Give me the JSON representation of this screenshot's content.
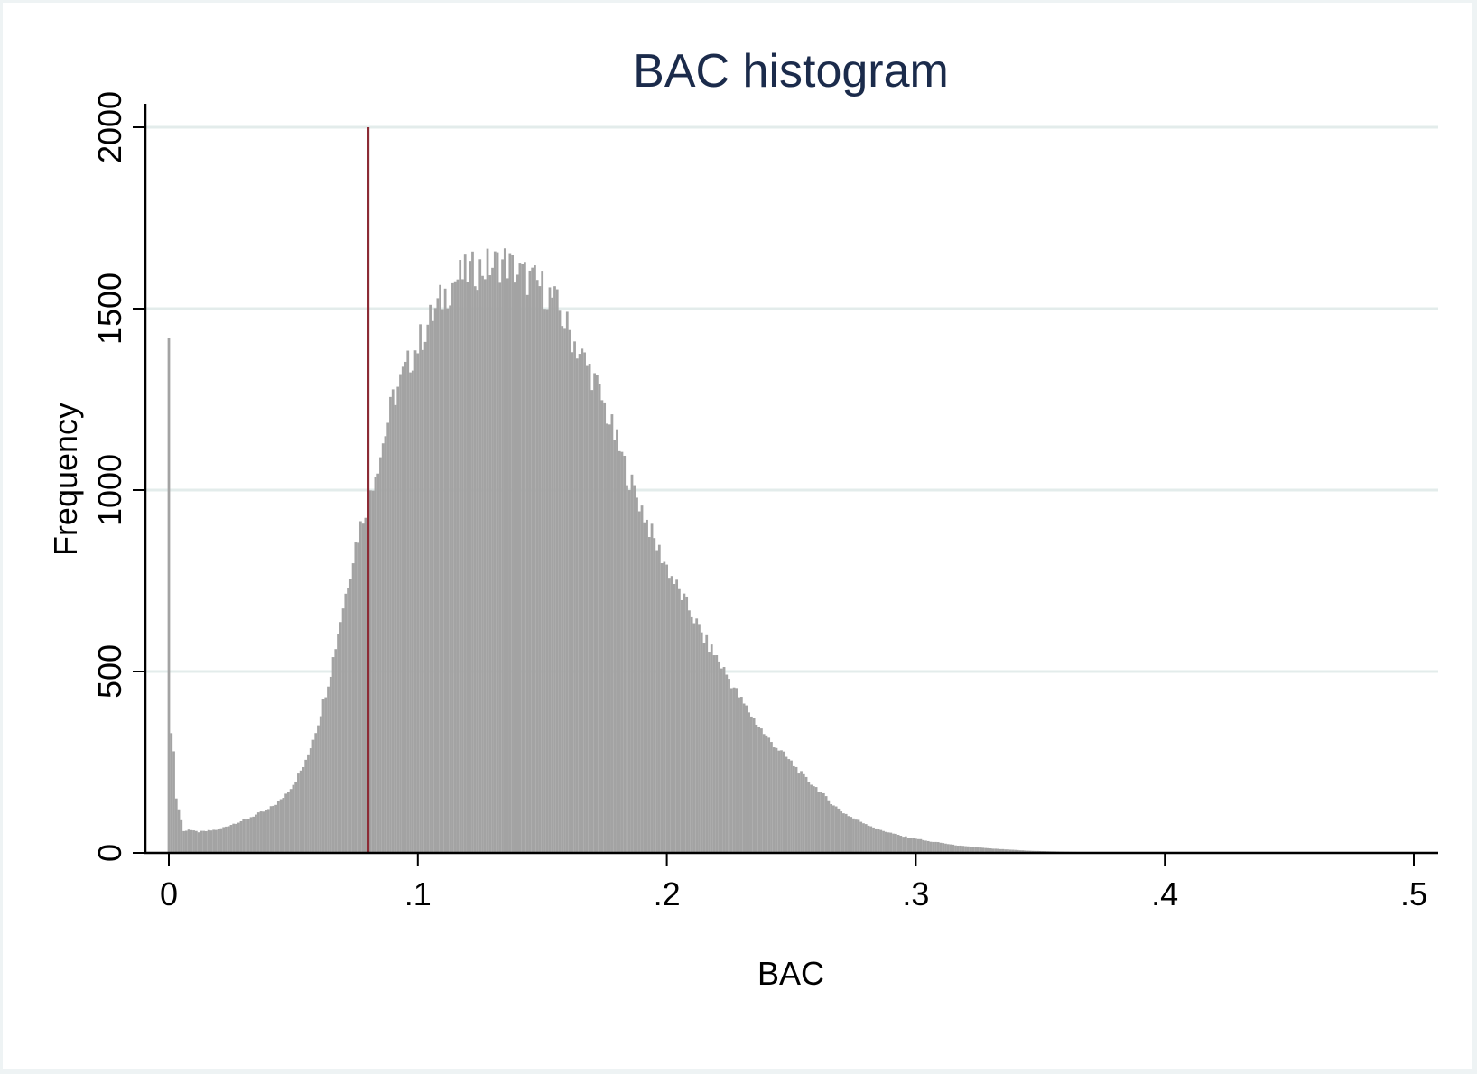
{
  "chart_data": {
    "type": "bar",
    "title": "BAC histogram",
    "xlabel": "BAC",
    "ylabel": "Frequency",
    "xlim": [
      0,
      0.5
    ],
    "ylim": [
      0,
      2000
    ],
    "xticks": [
      0,
      0.1,
      0.2,
      0.3,
      0.4,
      0.5
    ],
    "xtick_labels": [
      "0",
      ".1",
      ".2",
      ".3",
      ".4",
      ".5"
    ],
    "yticks": [
      0,
      500,
      1000,
      1500,
      2000
    ],
    "ytick_labels": [
      "0",
      "500",
      "1000",
      "1500",
      "2000"
    ],
    "grid": "horizontal",
    "bin_width": 0.001,
    "reference_line": {
      "x": 0.08
    },
    "bins": [
      {
        "x": 0.0,
        "y": 1420
      },
      {
        "x": 0.001,
        "y": 330
      },
      {
        "x": 0.002,
        "y": 280
      },
      {
        "x": 0.003,
        "y": 150
      },
      {
        "x": 0.004,
        "y": 120
      },
      {
        "x": 0.005,
        "y": 90
      },
      {
        "x": 0.006,
        "y": 60
      },
      {
        "x": 0.008,
        "y": 65
      },
      {
        "x": 0.01,
        "y": 60
      },
      {
        "x": 0.012,
        "y": 58
      },
      {
        "x": 0.015,
        "y": 60
      },
      {
        "x": 0.02,
        "y": 65
      },
      {
        "x": 0.025,
        "y": 78
      },
      {
        "x": 0.03,
        "y": 90
      },
      {
        "x": 0.035,
        "y": 105
      },
      {
        "x": 0.04,
        "y": 120
      },
      {
        "x": 0.045,
        "y": 145
      },
      {
        "x": 0.05,
        "y": 190
      },
      {
        "x": 0.055,
        "y": 250
      },
      {
        "x": 0.06,
        "y": 360
      },
      {
        "x": 0.065,
        "y": 500
      },
      {
        "x": 0.07,
        "y": 680
      },
      {
        "x": 0.075,
        "y": 850
      },
      {
        "x": 0.08,
        "y": 980
      },
      {
        "x": 0.085,
        "y": 1100
      },
      {
        "x": 0.09,
        "y": 1250
      },
      {
        "x": 0.095,
        "y": 1330
      },
      {
        "x": 0.1,
        "y": 1400
      },
      {
        "x": 0.105,
        "y": 1470
      },
      {
        "x": 0.11,
        "y": 1530
      },
      {
        "x": 0.115,
        "y": 1580
      },
      {
        "x": 0.12,
        "y": 1600
      },
      {
        "x": 0.125,
        "y": 1610
      },
      {
        "x": 0.13,
        "y": 1620
      },
      {
        "x": 0.135,
        "y": 1630
      },
      {
        "x": 0.14,
        "y": 1600
      },
      {
        "x": 0.145,
        "y": 1580
      },
      {
        "x": 0.15,
        "y": 1560
      },
      {
        "x": 0.155,
        "y": 1520
      },
      {
        "x": 0.16,
        "y": 1450
      },
      {
        "x": 0.165,
        "y": 1380
      },
      {
        "x": 0.17,
        "y": 1320
      },
      {
        "x": 0.175,
        "y": 1230
      },
      {
        "x": 0.18,
        "y": 1130
      },
      {
        "x": 0.185,
        "y": 1030
      },
      {
        "x": 0.19,
        "y": 950
      },
      {
        "x": 0.195,
        "y": 860
      },
      {
        "x": 0.2,
        "y": 790
      },
      {
        "x": 0.205,
        "y": 720
      },
      {
        "x": 0.21,
        "y": 660
      },
      {
        "x": 0.215,
        "y": 590
      },
      {
        "x": 0.22,
        "y": 540
      },
      {
        "x": 0.225,
        "y": 480
      },
      {
        "x": 0.23,
        "y": 420
      },
      {
        "x": 0.235,
        "y": 370
      },
      {
        "x": 0.24,
        "y": 320
      },
      {
        "x": 0.245,
        "y": 285
      },
      {
        "x": 0.25,
        "y": 250
      },
      {
        "x": 0.255,
        "y": 210
      },
      {
        "x": 0.26,
        "y": 180
      },
      {
        "x": 0.265,
        "y": 145
      },
      {
        "x": 0.27,
        "y": 115
      },
      {
        "x": 0.275,
        "y": 95
      },
      {
        "x": 0.28,
        "y": 80
      },
      {
        "x": 0.285,
        "y": 65
      },
      {
        "x": 0.29,
        "y": 55
      },
      {
        "x": 0.295,
        "y": 45
      },
      {
        "x": 0.3,
        "y": 40
      },
      {
        "x": 0.305,
        "y": 32
      },
      {
        "x": 0.31,
        "y": 28
      },
      {
        "x": 0.315,
        "y": 22
      },
      {
        "x": 0.32,
        "y": 18
      },
      {
        "x": 0.325,
        "y": 15
      },
      {
        "x": 0.33,
        "y": 12
      },
      {
        "x": 0.335,
        "y": 10
      },
      {
        "x": 0.34,
        "y": 8
      },
      {
        "x": 0.345,
        "y": 6
      },
      {
        "x": 0.35,
        "y": 5
      },
      {
        "x": 0.36,
        "y": 3
      },
      {
        "x": 0.37,
        "y": 2
      },
      {
        "x": 0.38,
        "y": 2
      },
      {
        "x": 0.4,
        "y": 1
      },
      {
        "x": 0.42,
        "y": 1
      },
      {
        "x": 0.45,
        "y": 1
      },
      {
        "x": 0.48,
        "y": 1
      },
      {
        "x": 0.5,
        "y": 1
      }
    ],
    "colors": {
      "bars": "#a3a3a3",
      "reference_line": "#8c2b35",
      "grid": "#e3eceb",
      "axis": "#000000",
      "title": "#1b2b4b",
      "background": "#ffffff",
      "outer_background": "#eef3f4"
    }
  }
}
